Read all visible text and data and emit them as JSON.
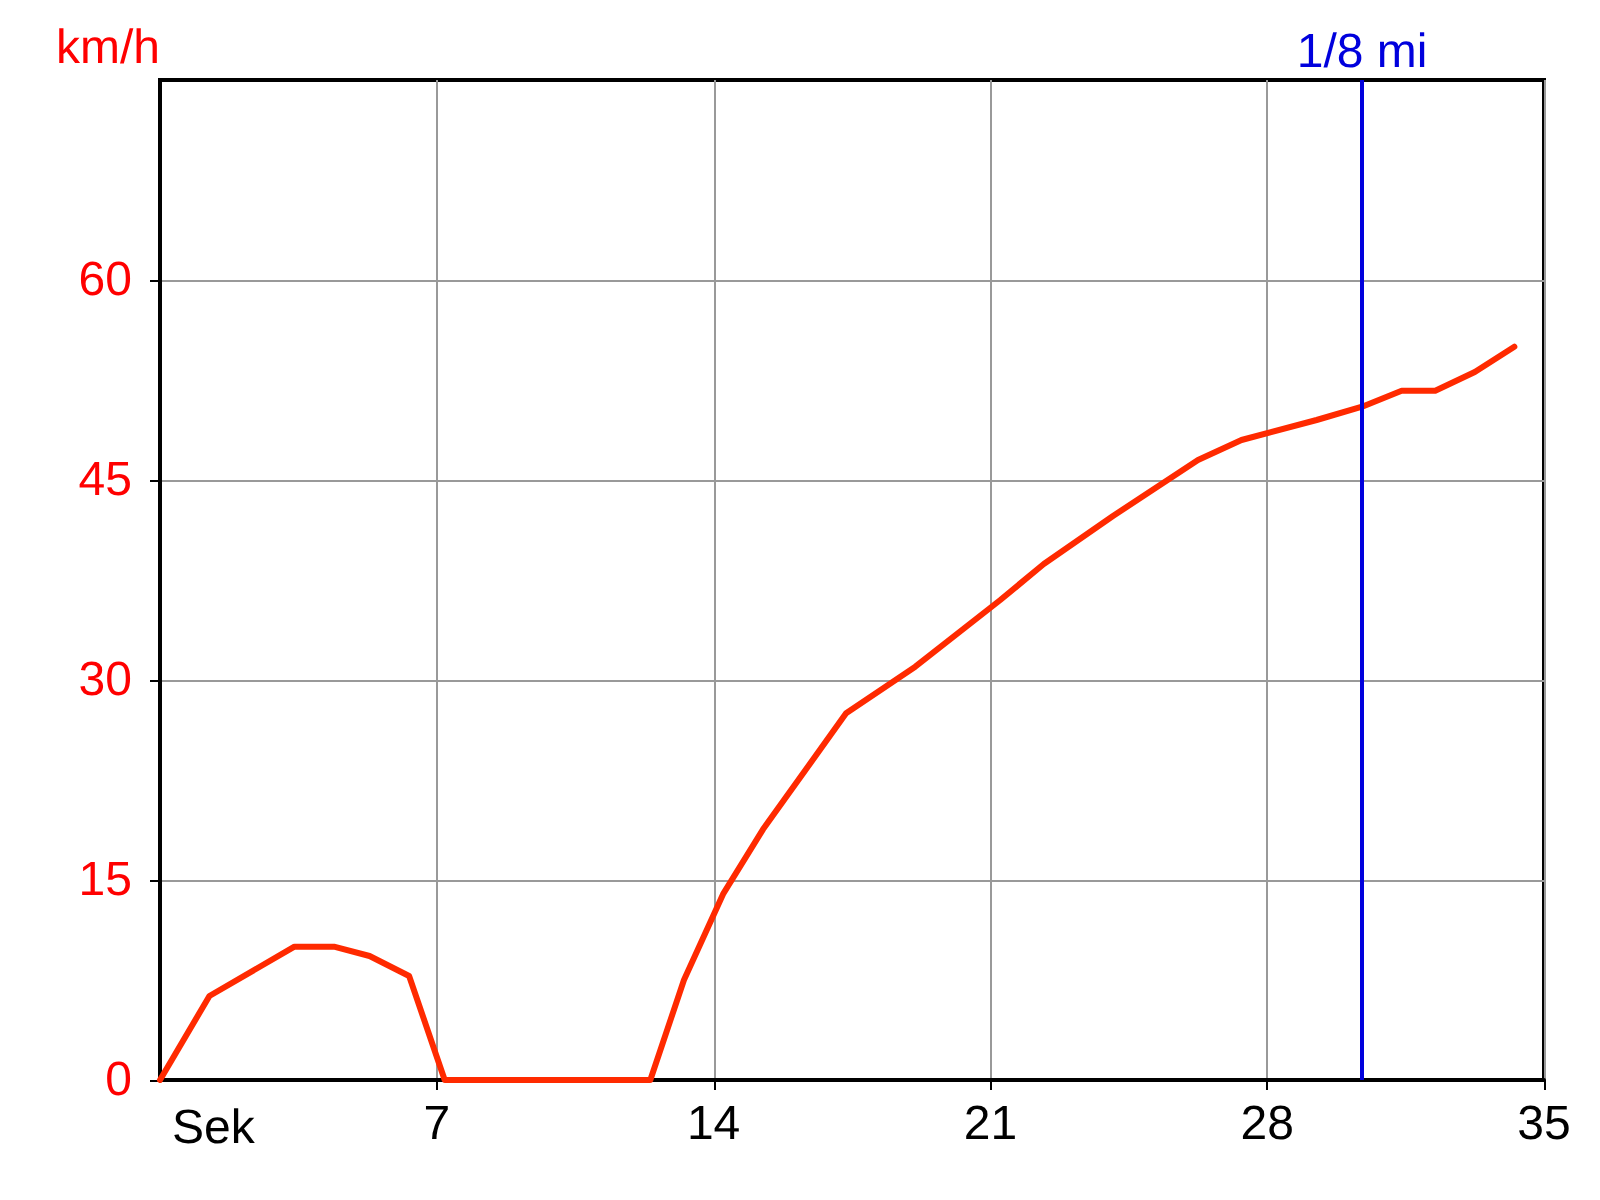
{
  "chart_data": {
    "type": "line",
    "xlabel": "Sek",
    "ylabel": "km/h",
    "x": [
      0,
      1.25,
      3.4,
      4.4,
      5.3,
      6.3,
      7.2,
      12.4,
      13.25,
      14.25,
      15.25,
      17.35,
      19.1,
      21.25,
      22.35,
      24.1,
      26.25,
      27.35,
      29.25,
      30.4,
      31.4,
      32.25,
      33.25,
      34.25
    ],
    "series": [
      {
        "color": "#ff2a00",
        "values": [
          0,
          6.3,
          10,
          10,
          9.3,
          7.8,
          0,
          0,
          7.5,
          14,
          18.8,
          27.5,
          31,
          36,
          38.7,
          42.3,
          46.5,
          48,
          49.5,
          50.5,
          51.7,
          51.7,
          53.1,
          55
        ]
      }
    ],
    "xlim": [
      0,
      35
    ],
    "xticks": [
      7,
      14,
      21,
      28,
      35
    ],
    "ylim": [
      0,
      75
    ],
    "yticks": [
      0,
      15,
      30,
      45,
      60
    ],
    "ref_lines": [
      {
        "axis": "x",
        "value": 30.4,
        "label": "1/8 mi",
        "color": "#0000dd"
      }
    ],
    "grid": true,
    "marker": "none",
    "line_style": "solid"
  }
}
